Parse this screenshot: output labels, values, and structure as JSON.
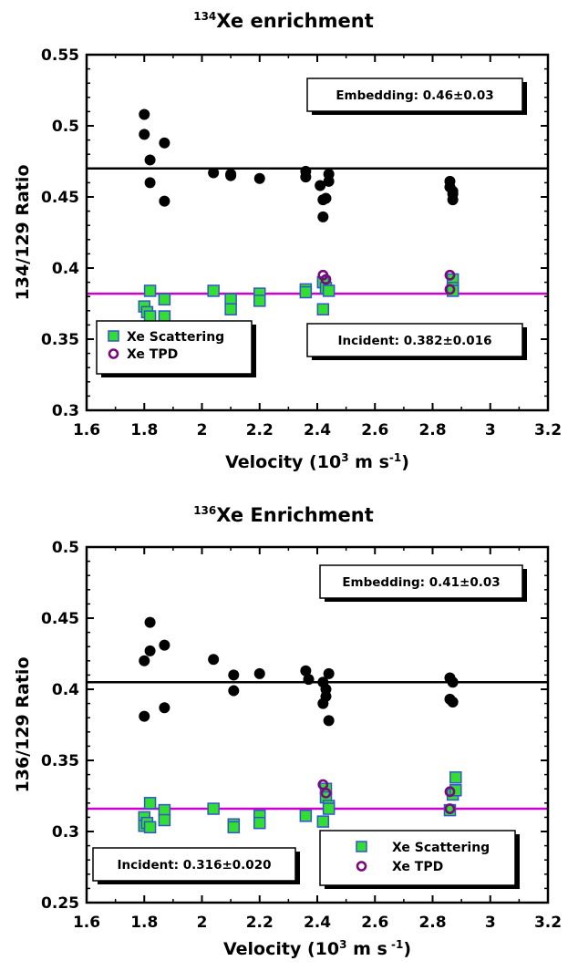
{
  "page": {
    "background": "#ffffff"
  },
  "chart_data": [
    {
      "type": "scatter",
      "title_sup": "134",
      "title": "Xe enrichment",
      "xlabel": {
        "main": "Velocity (10",
        "sup1": "3",
        "mid": " m s",
        "sup2": "-1",
        "end": ")"
      },
      "ylabel": "134/129 Ratio",
      "xlim": [
        1.6,
        3.2
      ],
      "ylim": [
        0.3,
        0.55
      ],
      "xticks": [
        1.6,
        1.8,
        2,
        2.2,
        2.4,
        2.6,
        2.8,
        3,
        3.2
      ],
      "xtick_labels": [
        "1.6",
        "1.8",
        "2",
        "2.2",
        "2.4",
        "2.6",
        "2.8",
        "3",
        "3.2"
      ],
      "yticks": [
        0.3,
        0.35,
        0.4,
        0.45,
        0.5,
        0.55
      ],
      "ytick_labels": [
        "0.3",
        "0.35",
        "0.4",
        "0.45",
        "0.5",
        "0.55"
      ],
      "grid": false,
      "legend_position": "bottom-left",
      "colors": {
        "embedding": "#000000",
        "incident": "#cc00cc",
        "square_fill": "#33dd33",
        "square_edge": "#3355cc",
        "tpd": "#7a0a7a"
      },
      "series": [
        {
          "name": "Xe Scattering",
          "marker": "square",
          "x": [
            1.8,
            1.81,
            1.82,
            1.82,
            1.87,
            1.87,
            2.04,
            2.1,
            2.1,
            2.2,
            2.2,
            2.36,
            2.36,
            2.42,
            2.42,
            2.43,
            2.44,
            2.87,
            2.87,
            2.87
          ],
          "y": [
            0.373,
            0.369,
            0.366,
            0.384,
            0.378,
            0.366,
            0.384,
            0.378,
            0.371,
            0.382,
            0.377,
            0.385,
            0.383,
            0.39,
            0.371,
            0.386,
            0.384,
            0.392,
            0.386,
            0.384
          ]
        },
        {
          "name": "Xe TPD",
          "marker": "circle-open",
          "x": [
            2.42,
            2.43,
            2.86,
            2.86
          ],
          "y": [
            0.395,
            0.392,
            0.395,
            0.385
          ]
        },
        {
          "name": "Embedding",
          "marker": "circle-filled",
          "x": [
            1.8,
            1.8,
            1.82,
            1.82,
            1.87,
            1.87,
            2.04,
            2.1,
            2.1,
            2.2,
            2.36,
            2.36,
            2.41,
            2.42,
            2.42,
            2.43,
            2.44,
            2.44,
            2.86,
            2.86,
            2.87,
            2.87,
            2.87
          ],
          "y": [
            0.508,
            0.494,
            0.476,
            0.46,
            0.488,
            0.447,
            0.467,
            0.466,
            0.465,
            0.463,
            0.468,
            0.464,
            0.458,
            0.448,
            0.436,
            0.449,
            0.466,
            0.461,
            0.461,
            0.457,
            0.454,
            0.448,
            0.452
          ]
        }
      ],
      "lines": [
        {
          "name": "Embedding",
          "y": 0.47,
          "color": "#000000"
        },
        {
          "name": "Incident",
          "y": 0.382,
          "color": "#cc00cc"
        }
      ],
      "annotations": [
        {
          "text": "Embedding: 0.46±0.03",
          "position": "top-right"
        },
        {
          "text": "Incident: 0.382±0.016",
          "position": "lower-right"
        }
      ]
    },
    {
      "type": "scatter",
      "title_sup": "136",
      "title": "Xe Enrichment",
      "xlabel": {
        "main": "Velocity (10",
        "sup1": "3",
        "mid": " m s",
        "sup2": " -1",
        "end": ")"
      },
      "ylabel": "136/129 Ratio",
      "xlim": [
        1.6,
        3.2
      ],
      "ylim": [
        0.25,
        0.5
      ],
      "xticks": [
        1.6,
        1.8,
        2,
        2.2,
        2.4,
        2.6,
        2.8,
        3,
        3.2
      ],
      "xtick_labels": [
        "1.6",
        "1.8",
        "2",
        "2.2",
        "2.4",
        "2.6",
        "2.8",
        "3",
        "3.2"
      ],
      "yticks": [
        0.25,
        0.3,
        0.35,
        0.4,
        0.45,
        0.5
      ],
      "ytick_labels": [
        "0.25",
        "0.3",
        "0.35",
        "0.4",
        "0.45",
        "0.5"
      ],
      "grid": false,
      "legend_position": "bottom-right",
      "colors": {
        "embedding": "#000000",
        "incident": "#cc00cc",
        "square_fill": "#33dd33",
        "square_edge": "#3355cc",
        "tpd": "#7a0a7a"
      },
      "series": [
        {
          "name": "Xe Scattering",
          "marker": "square",
          "x": [
            1.8,
            1.8,
            1.81,
            1.82,
            1.82,
            1.87,
            1.87,
            2.04,
            2.11,
            2.11,
            2.2,
            2.2,
            2.36,
            2.42,
            2.43,
            2.43,
            2.44,
            2.44,
            2.86,
            2.87,
            2.88,
            2.88
          ],
          "y": [
            0.31,
            0.304,
            0.306,
            0.303,
            0.32,
            0.315,
            0.308,
            0.316,
            0.305,
            0.303,
            0.311,
            0.306,
            0.311,
            0.307,
            0.33,
            0.324,
            0.318,
            0.316,
            0.315,
            0.326,
            0.338,
            0.329
          ]
        },
        {
          "name": "Xe TPD",
          "marker": "circle-open",
          "x": [
            2.42,
            2.43,
            2.86,
            2.86
          ],
          "y": [
            0.333,
            0.327,
            0.328,
            0.316
          ]
        },
        {
          "name": "Embedding",
          "marker": "circle-filled",
          "x": [
            1.8,
            1.8,
            1.82,
            1.82,
            1.87,
            1.87,
            2.04,
            2.11,
            2.11,
            2.2,
            2.36,
            2.37,
            2.42,
            2.42,
            2.43,
            2.43,
            2.44,
            2.44,
            2.86,
            2.86,
            2.87,
            2.87
          ],
          "y": [
            0.42,
            0.381,
            0.447,
            0.427,
            0.431,
            0.387,
            0.421,
            0.41,
            0.399,
            0.411,
            0.413,
            0.407,
            0.405,
            0.39,
            0.4,
            0.395,
            0.411,
            0.378,
            0.408,
            0.393,
            0.405,
            0.391
          ]
        }
      ],
      "lines": [
        {
          "name": "Embedding",
          "y": 0.405,
          "color": "#000000"
        },
        {
          "name": "Incident",
          "y": 0.316,
          "color": "#cc00cc"
        }
      ],
      "annotations": [
        {
          "text": "Embedding: 0.41±0.03",
          "position": "top-right"
        },
        {
          "text": "Incident: 0.316±0.020",
          "position": "bottom-left"
        }
      ]
    }
  ]
}
